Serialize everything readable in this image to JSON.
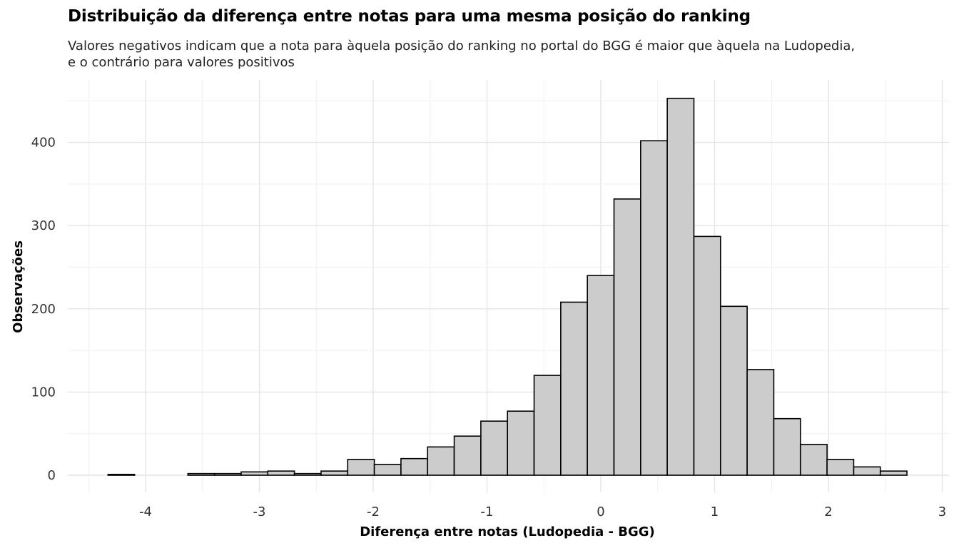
{
  "chart_data": {
    "type": "bar",
    "title": "Distribuição da diferença entre notas para uma mesma posição do ranking",
    "subtitle_lines": [
      "Valores negativos indicam que a nota para àquela posição do ranking no portal do BGG é maior que àquela na Ludopedia,",
      "e o contrário para valores positivos"
    ],
    "xlabel": "Diferença entre notas (Ludopedia - BGG)",
    "ylabel": "Observações",
    "xlim": [
      -4.5,
      3.0
    ],
    "ylim": [
      0,
      470
    ],
    "x_ticks": [
      -4,
      -3,
      -2,
      -1,
      0,
      1,
      2,
      3
    ],
    "y_ticks": [
      0,
      100,
      200,
      300,
      400
    ],
    "grid": true,
    "bin_width": 0.234,
    "bars": [
      {
        "x0": -4.33,
        "x1": -4.096,
        "count": 1
      },
      {
        "x0": -4.096,
        "x1": -3.862,
        "count": 0
      },
      {
        "x0": -3.862,
        "x1": -3.628,
        "count": 0
      },
      {
        "x0": -3.628,
        "x1": -3.394,
        "count": 2
      },
      {
        "x0": -3.394,
        "x1": -3.16,
        "count": 2
      },
      {
        "x0": -3.16,
        "x1": -2.926,
        "count": 4
      },
      {
        "x0": -2.926,
        "x1": -2.692,
        "count": 5
      },
      {
        "x0": -2.692,
        "x1": -2.458,
        "count": 2
      },
      {
        "x0": -2.458,
        "x1": -2.224,
        "count": 5
      },
      {
        "x0": -2.224,
        "x1": -1.99,
        "count": 19
      },
      {
        "x0": -1.99,
        "x1": -1.756,
        "count": 13
      },
      {
        "x0": -1.756,
        "x1": -1.522,
        "count": 20
      },
      {
        "x0": -1.522,
        "x1": -1.288,
        "count": 34
      },
      {
        "x0": -1.288,
        "x1": -1.054,
        "count": 47
      },
      {
        "x0": -1.054,
        "x1": -0.82,
        "count": 65
      },
      {
        "x0": -0.82,
        "x1": -0.586,
        "count": 77
      },
      {
        "x0": -0.586,
        "x1": -0.352,
        "count": 120
      },
      {
        "x0": -0.352,
        "x1": -0.118,
        "count": 208
      },
      {
        "x0": -0.118,
        "x1": 0.116,
        "count": 240
      },
      {
        "x0": 0.116,
        "x1": 0.35,
        "count": 332
      },
      {
        "x0": 0.35,
        "x1": 0.584,
        "count": 402
      },
      {
        "x0": 0.584,
        "x1": 0.818,
        "count": 453
      },
      {
        "x0": 0.818,
        "x1": 1.052,
        "count": 287
      },
      {
        "x0": 1.052,
        "x1": 1.286,
        "count": 203
      },
      {
        "x0": 1.286,
        "x1": 1.52,
        "count": 127
      },
      {
        "x0": 1.52,
        "x1": 1.754,
        "count": 68
      },
      {
        "x0": 1.754,
        "x1": 1.988,
        "count": 37
      },
      {
        "x0": 1.988,
        "x1": 2.222,
        "count": 19
      },
      {
        "x0": 2.222,
        "x1": 2.456,
        "count": 10
      },
      {
        "x0": 2.456,
        "x1": 2.69,
        "count": 5
      }
    ],
    "colors": {
      "bar_fill": "#cccccc",
      "bar_stroke": "#000000",
      "grid_major": "#e4e4e4",
      "grid_minor": "#f0f0f0"
    }
  }
}
